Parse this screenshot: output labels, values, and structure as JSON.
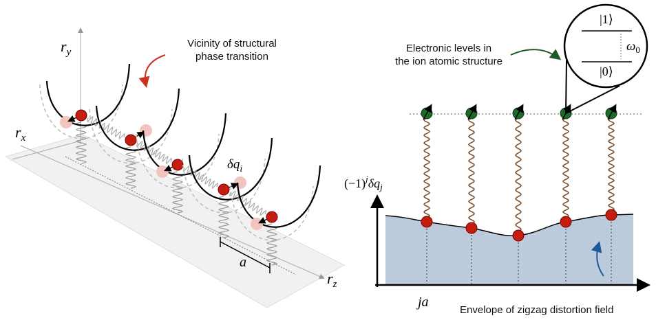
{
  "left_panel": {
    "axis_y": {
      "symbol": "r",
      "subscript": "y"
    },
    "axis_x": {
      "symbol": "r",
      "subscript": "x"
    },
    "axis_z": {
      "symbol": "r",
      "subscript": "z"
    },
    "annotation": [
      "Vicinity of structural",
      "phase transition"
    ],
    "displacement": {
      "symbol": "δq",
      "subscript": "i"
    },
    "spacing": "a"
  },
  "right_panel": {
    "annotation": [
      "Electronic levels in",
      "the ion atomic structure"
    ],
    "level_upper": "|1⟩",
    "level_lower": "|0⟩",
    "frequency": {
      "symbol": "ω",
      "subscript": "0"
    },
    "y_axis_label": {
      "prefix": "(−1)",
      "superscript": "j",
      "symbol": "δq",
      "subscript": "j"
    },
    "x_axis_label": "ja",
    "envelope_label": "Envelope of zigzag distortion field"
  }
}
